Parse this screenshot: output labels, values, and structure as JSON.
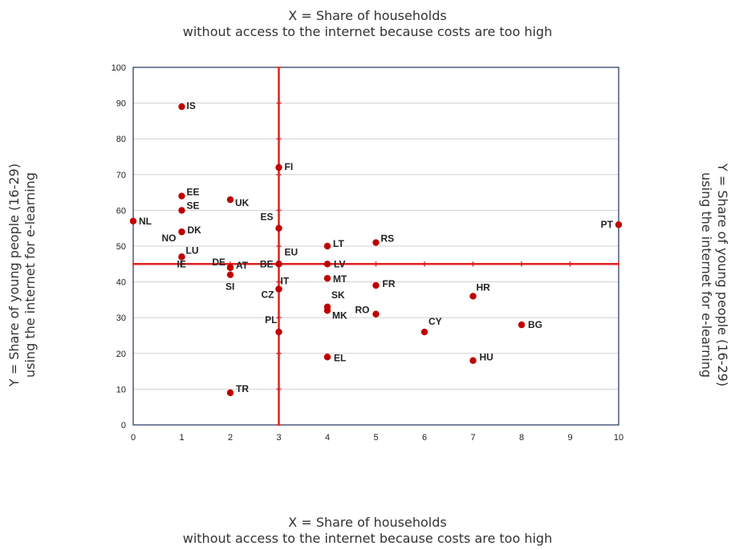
{
  "chart_data": {
    "type": "scatter",
    "xlabel": [
      "X = Share of households",
      "without access to the internet because costs are too high"
    ],
    "ylabel": [
      "Y = Share of young people (16-29)",
      "using the internet for e-learning"
    ],
    "xlim": [
      0,
      10
    ],
    "ylim": [
      0,
      100
    ],
    "xticks": [
      "0",
      "1",
      "2",
      "3",
      "4",
      "5",
      "6",
      "7",
      "8",
      "9",
      "10"
    ],
    "yticks": [
      "0",
      "10",
      "20",
      "30",
      "40",
      "50",
      "60",
      "70",
      "80",
      "90",
      "100"
    ],
    "grid": true,
    "reference_lines": {
      "x": 3,
      "y": 45
    },
    "colors": {
      "point": "#c00000",
      "reference": "#e02020",
      "grid": "#d0d0d0",
      "frame": "#1f2f5f"
    },
    "points": [
      {
        "label": "IS",
        "x": 1,
        "y": 89
      },
      {
        "label": "FI",
        "x": 3,
        "y": 72
      },
      {
        "label": "EE",
        "x": 1,
        "y": 64
      },
      {
        "label": "UK",
        "x": 2,
        "y": 63
      },
      {
        "label": "SE",
        "x": 1,
        "y": 60
      },
      {
        "label": "NL",
        "x": 0,
        "y": 57
      },
      {
        "label": "PT",
        "x": 10,
        "y": 56
      },
      {
        "label": "ES",
        "x": 3,
        "y": 55
      },
      {
        "label": "DK",
        "x": 1,
        "y": 54
      },
      {
        "label": "NO",
        "x": 1,
        "y": 54
      },
      {
        "label": "RS",
        "x": 5,
        "y": 51
      },
      {
        "label": "LT",
        "x": 4,
        "y": 50
      },
      {
        "label": "LU",
        "x": 1,
        "y": 47
      },
      {
        "label": "IE",
        "x": 1,
        "y": 47
      },
      {
        "label": "EU",
        "x": 3,
        "y": 45
      },
      {
        "label": "BE",
        "x": 3,
        "y": 45
      },
      {
        "label": "LV",
        "x": 4,
        "y": 45
      },
      {
        "label": "AT",
        "x": 2,
        "y": 44
      },
      {
        "label": "DE",
        "x": 2,
        "y": 44
      },
      {
        "label": "SI",
        "x": 2,
        "y": 42
      },
      {
        "label": "MT",
        "x": 4,
        "y": 41
      },
      {
        "label": "IT",
        "x": 3,
        "y": 38
      },
      {
        "label": "CZ",
        "x": 3,
        "y": 38
      },
      {
        "label": "FR",
        "x": 5,
        "y": 39
      },
      {
        "label": "HR",
        "x": 7,
        "y": 36
      },
      {
        "label": "SK",
        "x": 4,
        "y": 33
      },
      {
        "label": "MK",
        "x": 4,
        "y": 32
      },
      {
        "label": "RO",
        "x": 5,
        "y": 31
      },
      {
        "label": "BG",
        "x": 8,
        "y": 28
      },
      {
        "label": "CY",
        "x": 6,
        "y": 26
      },
      {
        "label": "PL",
        "x": 3,
        "y": 26
      },
      {
        "label": "EL",
        "x": 4,
        "y": 19
      },
      {
        "label": "HU",
        "x": 7,
        "y": 18
      },
      {
        "label": "TR",
        "x": 2,
        "y": 9
      }
    ]
  }
}
